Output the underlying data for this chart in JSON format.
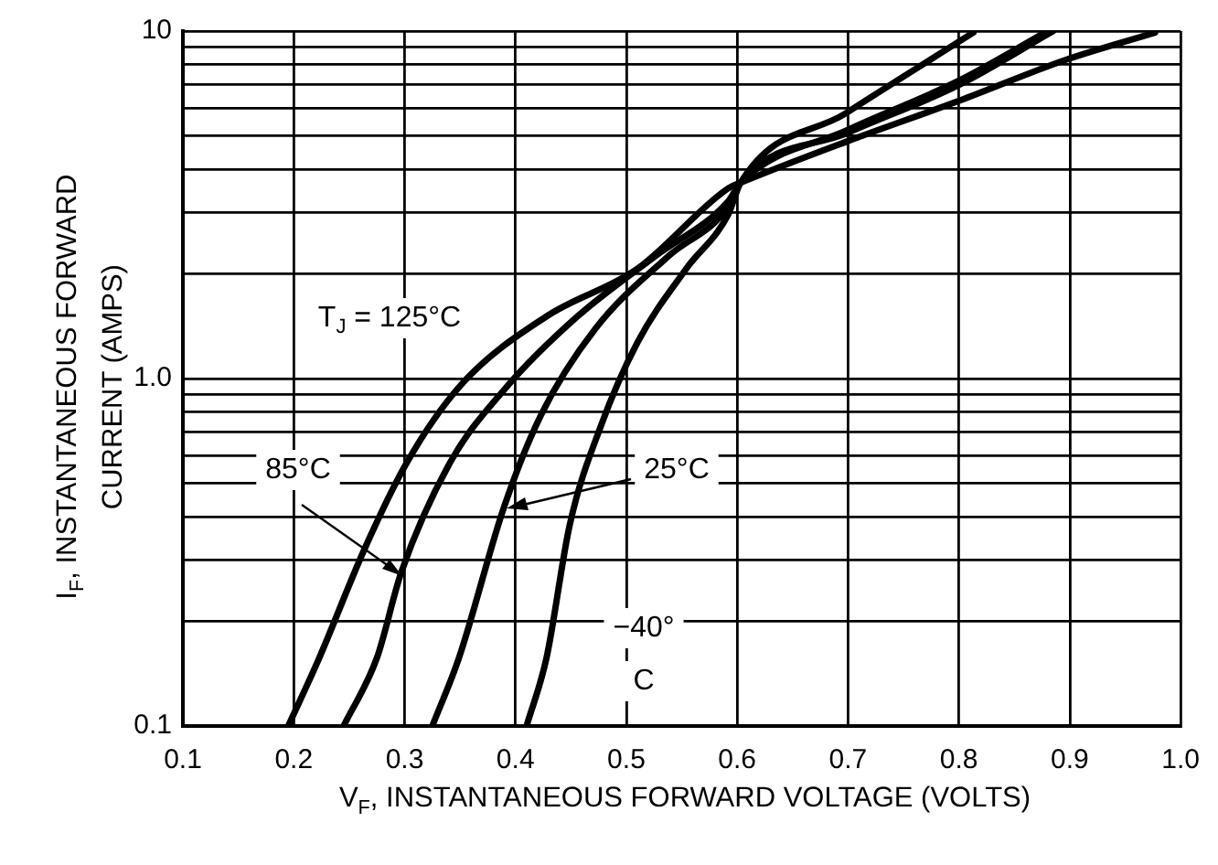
{
  "chart_data": {
    "type": "line",
    "xlabel": "V$_{F}$, INSTANTANEOUS FORWARD VOLTAGE (VOLTS)",
    "ylabel": "I$_{F}$, INSTANTANEOUS FORWARD\nCURRENT (AMPS)",
    "log": "y",
    "grid": true,
    "legend": false,
    "marker": "none",
    "line_style": "solid",
    "xlim": [
      0.1,
      1.0
    ],
    "xticks": [
      0.1,
      0.2,
      0.3,
      0.4,
      0.5,
      0.6,
      0.7,
      0.8,
      0.9,
      {
        "value": 1.0,
        "label": "1.0"
      }
    ],
    "ylim": [
      0.1,
      10
    ],
    "yticks": [
      0.1,
      {
        "value": 0.2,
        "label": null
      },
      {
        "value": 0.3,
        "label": null
      },
      {
        "value": 0.4,
        "label": null
      },
      {
        "value": 0.5,
        "label": null
      },
      {
        "value": 0.6,
        "label": null
      },
      {
        "value": 0.7,
        "label": null
      },
      {
        "value": 0.8,
        "label": null
      },
      {
        "value": 0.9,
        "label": null
      },
      {
        "value": 1,
        "label": "1.0"
      },
      {
        "value": 2,
        "label": null
      },
      {
        "value": 3,
        "label": null
      },
      {
        "value": 4,
        "label": null
      },
      {
        "value": 5,
        "label": null
      },
      {
        "value": 6,
        "label": null
      },
      {
        "value": 7,
        "label": null
      },
      {
        "value": 8,
        "label": null
      },
      {
        "value": 9,
        "label": null
      },
      10
    ],
    "series": [
      {
        "name": "T$_{J}$ = 125°C",
        "color": "#000000",
        "x": [
          0.195,
          0.223,
          0.264,
          0.302,
          0.351,
          0.428,
          0.51,
          0.592,
          0.603,
          0.698,
          0.8,
          0.898,
          0.977
        ],
        "values": [
          0.1,
          0.157,
          0.324,
          0.573,
          0.96,
          1.51,
          2.07,
          3.53,
          3.66,
          4.8,
          6.3,
          8.3,
          9.9
        ]
      },
      {
        "name": "85°C",
        "color": "#000000",
        "x": [
          0.245,
          0.275,
          0.297,
          0.341,
          0.39,
          0.456,
          0.526,
          0.592,
          0.603,
          0.7,
          0.8,
          0.88
        ],
        "values": [
          0.1,
          0.157,
          0.277,
          0.573,
          0.93,
          1.51,
          2.25,
          3.24,
          3.66,
          5.2,
          7.2,
          10
        ]
      },
      {
        "color": "#000000",
        "x": [
          0.325,
          0.349,
          0.39,
          0.423,
          0.472,
          0.538,
          0.592,
          0.603,
          0.7,
          0.8,
          0.885
        ],
        "values": [
          0.1,
          0.157,
          0.43,
          0.785,
          1.39,
          2.25,
          3.12,
          3.66,
          5.1,
          7.0,
          10
        ]
      },
      {
        "name": "−40°\nC",
        "color": "#000000",
        "x": [
          0.41,
          0.428,
          0.449,
          0.477,
          0.51,
          0.554,
          0.592,
          0.603,
          0.698,
          0.813
        ],
        "values": [
          0.1,
          0.157,
          0.38,
          0.73,
          1.27,
          2.07,
          2.97,
          3.66,
          5.8,
          9.9
        ]
      }
    ],
    "annotations": [
      "25°C"
    ]
  }
}
